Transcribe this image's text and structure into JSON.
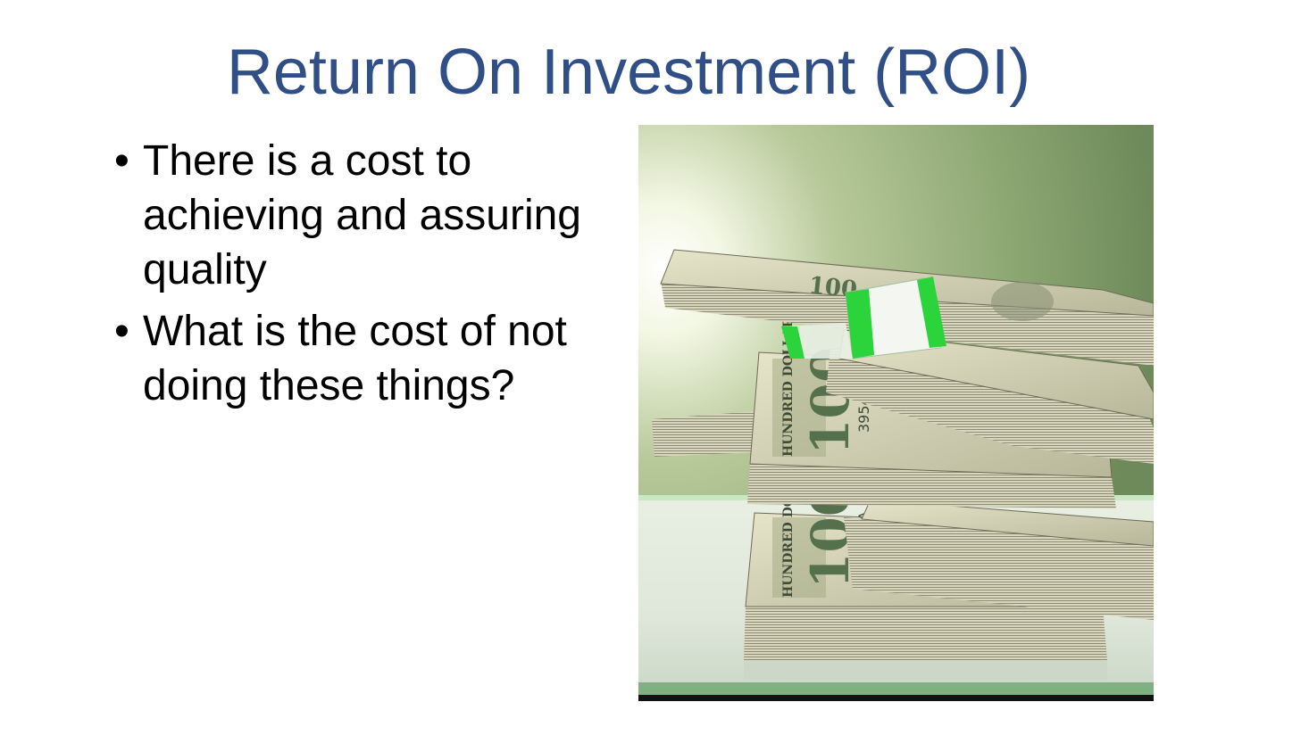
{
  "slide": {
    "title": "Return On Investment (ROI)",
    "bullets": [
      {
        "text": "There is a cost to achieving and assuring quality"
      },
      {
        "text": "What is the cost of not doing these things?"
      }
    ],
    "bullet_symbol": "•",
    "picture": {
      "subject": "stacks of hundred-dollar bills",
      "note_denomination": "100",
      "note_serial": "39545 A",
      "note_legend": "HUNDRED DOLLARS"
    }
  },
  "colors": {
    "title": "#2f4f86",
    "body_text": "#000000",
    "background": "#ffffff",
    "money_band": "#2bd43b"
  }
}
